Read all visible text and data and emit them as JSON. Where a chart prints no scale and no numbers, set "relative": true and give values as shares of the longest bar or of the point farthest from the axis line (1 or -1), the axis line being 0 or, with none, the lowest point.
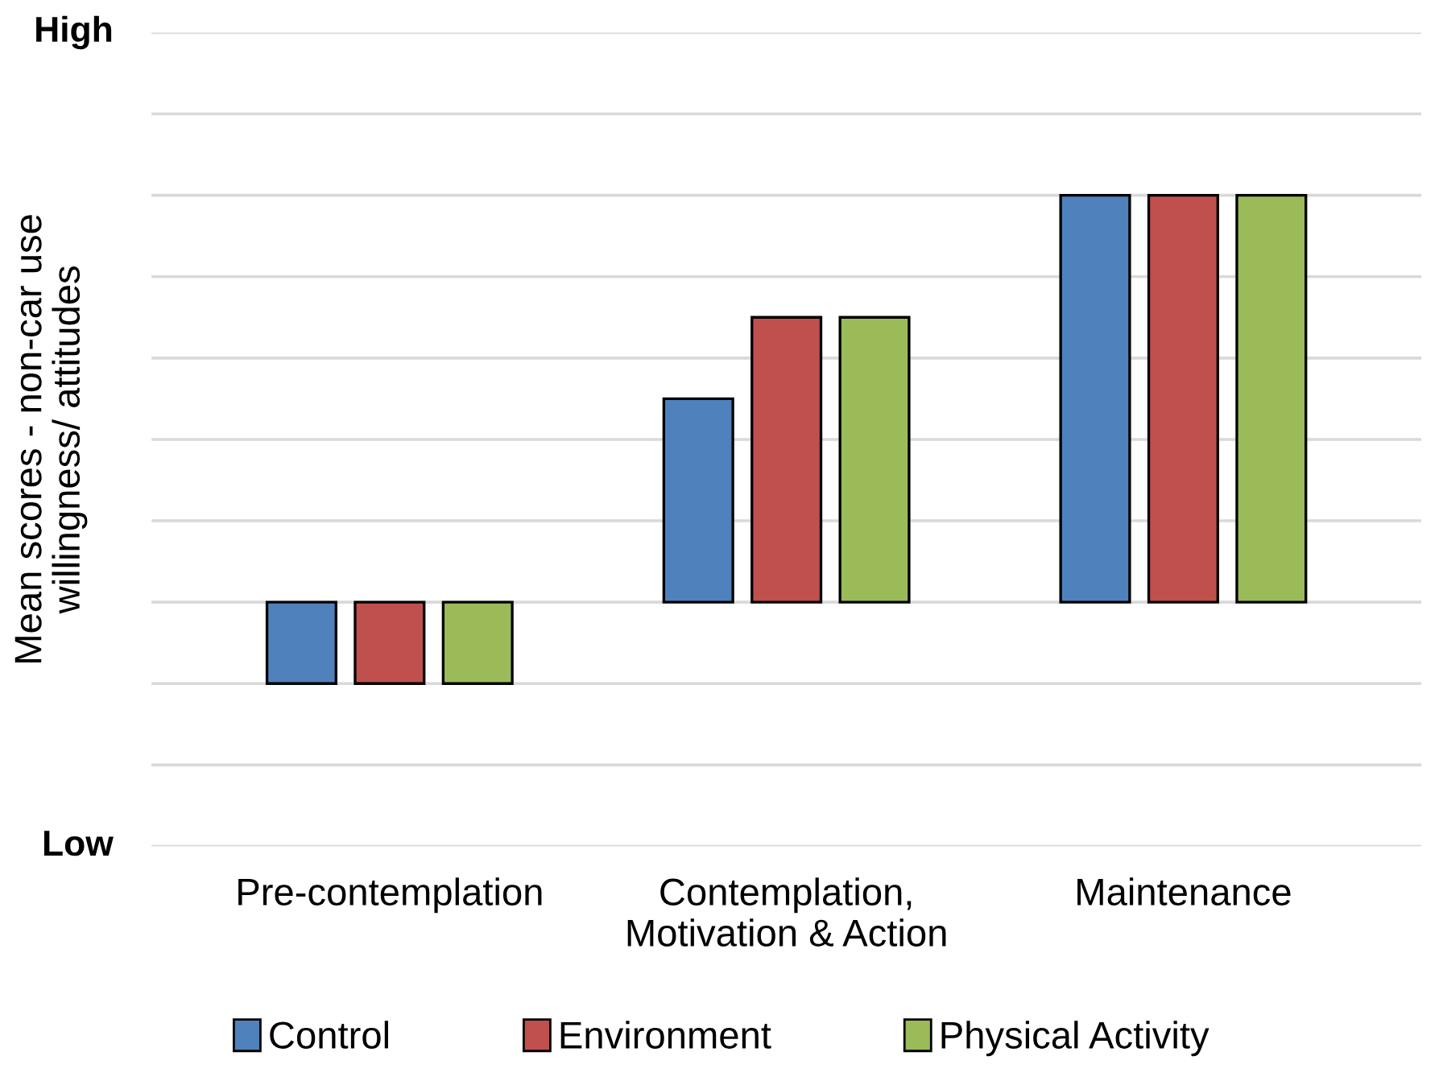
{
  "chart_data": {
    "type": "bar",
    "relative": true,
    "ylabel": "Mean scores - non-car use\nwillingness/ attitudes",
    "categories": [
      "Pre-contemplation",
      "Contemplation,\nMotivation & Action",
      "Maintenance"
    ],
    "series": [
      {
        "name": "Control",
        "color": "#4f81bd",
        "values": [
          -0.2,
          0.5,
          1
        ]
      },
      {
        "name": "Environment",
        "color": "#c0504d",
        "values": [
          -0.2,
          0.7,
          1
        ]
      },
      {
        "name": "Physical Activity",
        "color": "#9bbb59",
        "values": [
          -0.2,
          0.7,
          1
        ]
      }
    ],
    "annotations": [
      "High",
      "Low"
    ],
    "grid": "y",
    "legend": "bottom"
  }
}
